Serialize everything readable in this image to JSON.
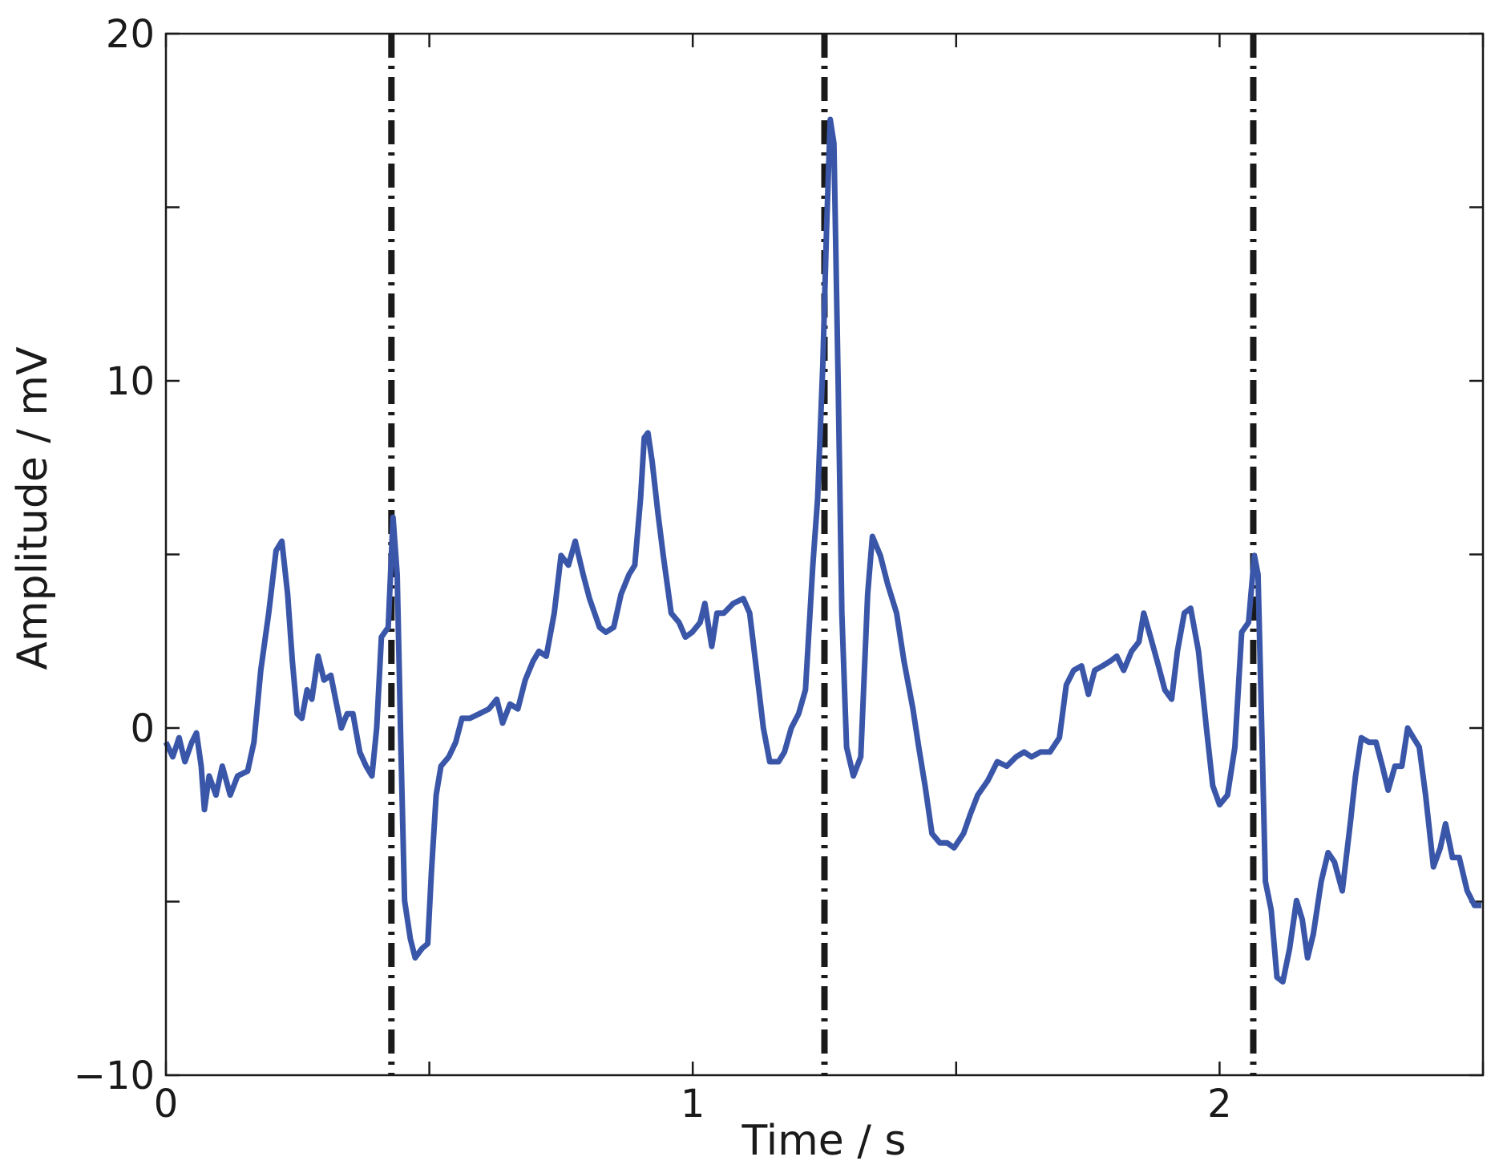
{
  "chart_data": {
    "type": "line",
    "x_label": "Time / s",
    "y_label": "Amplitude / mV",
    "xlim": [
      0,
      2.5
    ],
    "xticks": [
      0,
      1,
      2
    ],
    "xminorticks": [
      0.5,
      1.5,
      2.5
    ],
    "ylim": [
      -10,
      20
    ],
    "yticks": [
      {
        "value": -10,
        "label": "−10"
      },
      0,
      10,
      20
    ],
    "yminorticks": [
      -5,
      5,
      15
    ],
    "vlines": [
      0.428,
      1.25,
      2.064
    ],
    "vline_color": "#1a1a1a",
    "series": [
      {
        "color": "#3a56a8",
        "x": [
          0,
          0.013,
          0.025,
          0.036,
          0.049,
          0.058,
          0.067,
          0.073,
          0.082,
          0.095,
          0.107,
          0.122,
          0.136,
          0.155,
          0.167,
          0.18,
          0.195,
          0.209,
          0.22,
          0.231,
          0.24,
          0.249,
          0.258,
          0.268,
          0.277,
          0.289,
          0.3,
          0.313,
          0.322,
          0.333,
          0.344,
          0.355,
          0.368,
          0.38,
          0.391,
          0.4,
          0.409,
          0.422,
          0.431,
          0.439,
          0.446,
          0.453,
          0.464,
          0.473,
          0.486,
          0.497,
          0.504,
          0.513,
          0.522,
          0.537,
          0.55,
          0.562,
          0.577,
          0.595,
          0.613,
          0.628,
          0.639,
          0.653,
          0.668,
          0.682,
          0.697,
          0.708,
          0.722,
          0.737,
          0.75,
          0.764,
          0.777,
          0.792,
          0.804,
          0.823,
          0.835,
          0.85,
          0.864,
          0.879,
          0.89,
          0.901,
          0.908,
          0.915,
          0.923,
          0.934,
          0.944,
          0.959,
          0.974,
          0.986,
          0.999,
          1.014,
          1.023,
          1.036,
          1.046,
          1.059,
          1.077,
          1.096,
          1.108,
          1.119,
          1.134,
          1.146,
          1.163,
          1.174,
          1.187,
          1.201,
          1.214,
          1.228,
          1.237,
          1.247,
          1.254,
          1.261,
          1.268,
          1.276,
          1.283,
          1.292,
          1.305,
          1.319,
          1.332,
          1.341,
          1.356,
          1.37,
          1.387,
          1.401,
          1.418,
          1.429,
          1.441,
          1.454,
          1.469,
          1.483,
          1.496,
          1.514,
          1.527,
          1.541,
          1.56,
          1.578,
          1.596,
          1.614,
          1.629,
          1.643,
          1.66,
          1.678,
          1.696,
          1.709,
          1.723,
          1.738,
          1.751,
          1.763,
          1.778,
          1.793,
          1.805,
          1.818,
          1.833,
          1.847,
          1.856,
          1.869,
          1.884,
          1.896,
          1.909,
          1.92,
          1.933,
          1.945,
          1.96,
          1.975,
          1.987,
          2.0,
          2.015,
          2.029,
          2.042,
          2.055,
          2.066,
          2.073,
          2.08,
          2.087,
          2.098,
          2.109,
          2.12,
          2.133,
          2.146,
          2.157,
          2.167,
          2.178,
          2.193,
          2.206,
          2.218,
          2.233,
          2.248,
          2.258,
          2.269,
          2.284,
          2.297,
          2.309,
          2.32,
          2.333,
          2.346,
          2.357,
          2.368,
          2.379,
          2.391,
          2.406,
          2.419,
          2.429,
          2.442,
          2.455,
          2.47,
          2.484,
          2.497
        ],
        "values": [
          -0.41,
          -0.83,
          -0.28,
          -0.97,
          -0.41,
          -0.14,
          -1.1,
          -2.35,
          -1.38,
          -1.93,
          -1.1,
          -1.93,
          -1.38,
          -1.24,
          -0.41,
          1.66,
          3.31,
          5.11,
          5.38,
          3.86,
          1.93,
          0.41,
          0.28,
          1.1,
          0.83,
          2.07,
          1.38,
          1.52,
          0.83,
          0,
          0.41,
          0.41,
          -0.69,
          -1.1,
          -1.38,
          0,
          2.62,
          2.9,
          6.07,
          4.42,
          -0.55,
          -4.97,
          -6.07,
          -6.62,
          -6.35,
          -6.21,
          -4.14,
          -1.93,
          -1.1,
          -0.83,
          -0.41,
          0.28,
          0.28,
          0.41,
          0.55,
          0.83,
          0.14,
          0.69,
          0.55,
          1.38,
          1.93,
          2.21,
          2.07,
          3.31,
          4.97,
          4.69,
          5.38,
          4.42,
          3.73,
          2.9,
          2.76,
          2.9,
          3.86,
          4.42,
          4.69,
          6.62,
          8.36,
          8.5,
          7.67,
          6.18,
          4.97,
          3.31,
          3.04,
          2.62,
          2.76,
          3.04,
          3.59,
          2.35,
          3.31,
          3.31,
          3.59,
          3.73,
          3.31,
          1.93,
          0,
          -0.97,
          -0.97,
          -0.69,
          0,
          0.41,
          1.1,
          4.69,
          6.62,
          10.49,
          14.35,
          17.53,
          16.84,
          9.94,
          3.31,
          -0.55,
          -1.38,
          -0.83,
          3.86,
          5.52,
          4.97,
          4.14,
          3.31,
          1.93,
          0.55,
          -0.55,
          -1.66,
          -3.04,
          -3.31,
          -3.31,
          -3.45,
          -3.04,
          -2.48,
          -1.93,
          -1.52,
          -0.97,
          -1.1,
          -0.83,
          -0.69,
          -0.83,
          -0.69,
          -0.69,
          -0.28,
          1.24,
          1.66,
          1.79,
          0.97,
          1.66,
          1.79,
          1.93,
          2.07,
          1.66,
          2.21,
          2.48,
          3.31,
          2.62,
          1.79,
          1.1,
          0.83,
          2.21,
          3.31,
          3.45,
          2.21,
          0,
          -1.66,
          -2.21,
          -1.93,
          -0.55,
          2.76,
          3.04,
          4.97,
          4.42,
          0,
          -4.42,
          -5.24,
          -7.18,
          -7.31,
          -6.35,
          -4.97,
          -5.52,
          -6.62,
          -5.93,
          -4.42,
          -3.59,
          -3.86,
          -4.69,
          -2.76,
          -1.38,
          -0.28,
          -0.41,
          -0.41,
          -1.1,
          -1.79,
          -1.1,
          -1.1,
          0,
          -0.28,
          -0.55,
          -1.93,
          -4.0,
          -3.45,
          -2.76,
          -3.73,
          -3.73,
          -4.69,
          -5.11,
          -5.11
        ]
      }
    ]
  }
}
